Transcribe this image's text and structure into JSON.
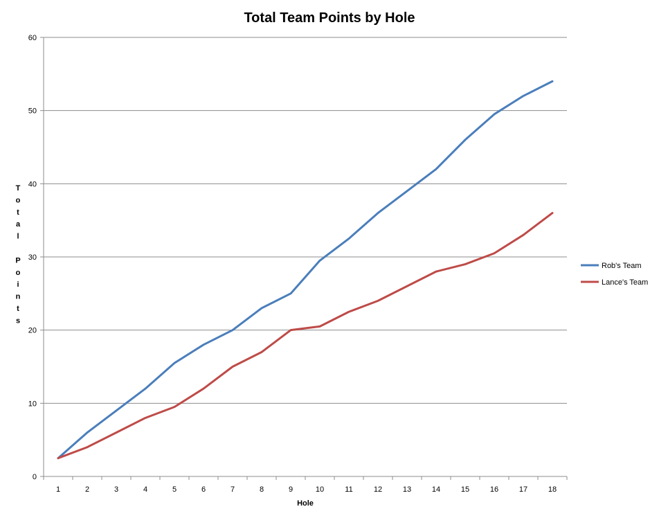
{
  "chart_data": {
    "type": "line",
    "title": "Total Team Points by Hole",
    "xlabel": "Hole",
    "ylabel": "Total Points",
    "categories": [
      "1",
      "2",
      "3",
      "4",
      "5",
      "6",
      "7",
      "8",
      "9",
      "10",
      "11",
      "12",
      "13",
      "14",
      "15",
      "16",
      "17",
      "18"
    ],
    "ylim": [
      0,
      60
    ],
    "yticks": [
      0,
      10,
      20,
      30,
      40,
      50,
      60
    ],
    "grid": true,
    "legend": "right",
    "series": [
      {
        "name": "Rob's Team",
        "color": "#4a7ebb",
        "values": [
          2.5,
          6,
          9,
          12,
          15.5,
          18,
          20,
          23,
          25,
          29.5,
          32.5,
          36,
          39,
          42,
          46,
          49.5,
          52,
          54
        ]
      },
      {
        "name": "Lance's Team",
        "color": "#be4b48",
        "values": [
          2.5,
          4,
          6,
          8,
          9.5,
          12,
          15,
          17,
          20,
          20.5,
          22.5,
          24,
          26,
          28,
          29,
          30.5,
          33,
          36
        ]
      }
    ]
  }
}
